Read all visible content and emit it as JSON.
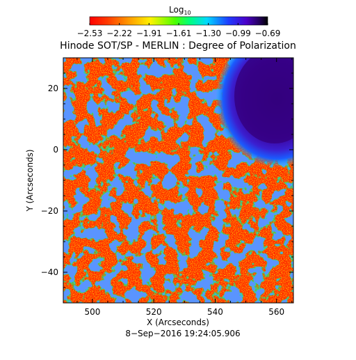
{
  "chart_data": {
    "type": "heatmap",
    "title": "Hinode SOT/SP - MERLIN : Degree of Polarization",
    "xlabel": "X (Arcseconds)",
    "ylabel": "Y (Arcseconds)",
    "xlim": [
      490.5,
      565.5
    ],
    "ylim": [
      -50,
      30
    ],
    "x_ticks": [
      "500",
      "520",
      "540",
      "560"
    ],
    "x_tick_values": [
      500,
      520,
      540,
      560
    ],
    "y_ticks": [
      "20",
      "0",
      "−20",
      "−40"
    ],
    "y_tick_values": [
      20,
      0,
      -20,
      -40
    ],
    "colorbar": {
      "label_base": "Log",
      "label_sub": "10",
      "scale": "log10",
      "range": [
        -2.53,
        -0.69
      ],
      "ticks": [
        "−2.53",
        "−2.22",
        "−1.91",
        "−1.61",
        "−1.30",
        "−0.99",
        "−0.69"
      ],
      "colormap": "rainbow"
    },
    "timestamp": "8−Sep−2016 19:24:05.906"
  },
  "colors": {
    "low": "#ff0000",
    "mid": "#00ff00",
    "high": "#000000",
    "axis": "#000000"
  }
}
